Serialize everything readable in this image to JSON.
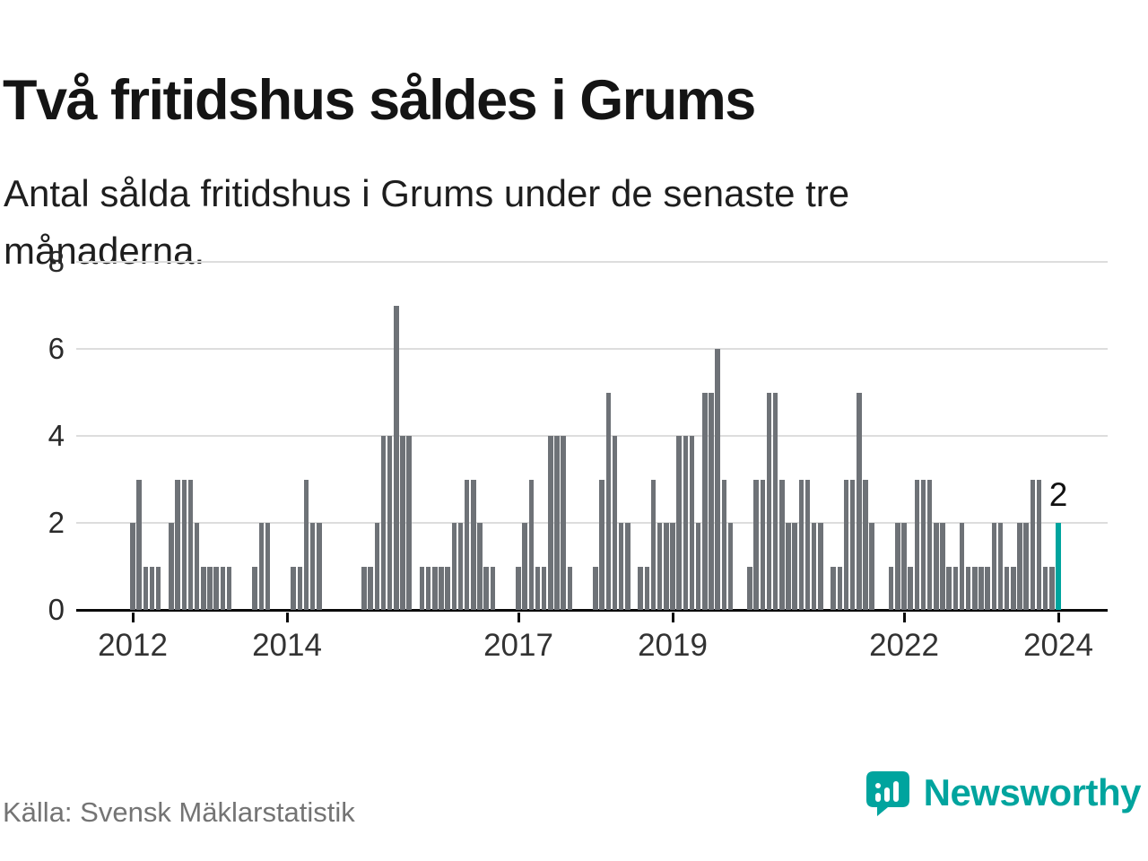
{
  "title": "Två fritidshus såldes i Grums",
  "subtitle": "Antal sålda fritidshus i Grums under de senaste tre månaderna.",
  "source": "Källa: Svensk Mäklarstatistik",
  "brand": {
    "name": "Newsworthy"
  },
  "colors": {
    "bar": "#6e7277",
    "highlight": "#00a49e",
    "grid": "#dddddd",
    "axis": "#0a0a0a",
    "brand": "#00a49e"
  },
  "chart_data": {
    "type": "bar",
    "title": "Antal sålda fritidshus i Grums under de senaste tre månaderna",
    "xlabel": "",
    "ylabel": "",
    "ylim": [
      0,
      8
    ],
    "yticks": [
      0,
      2,
      4,
      6,
      8
    ],
    "grid": true,
    "x_unit": "month",
    "x_tick_labels": [
      "2012",
      "2014",
      "2017",
      "2019",
      "2022",
      "2024"
    ],
    "x_tick_month_index": [
      0,
      24,
      60,
      84,
      120,
      144
    ],
    "highlight_last": true,
    "last_label": "2",
    "values": [
      2,
      3,
      1,
      1,
      1,
      0,
      2,
      3,
      3,
      3,
      2,
      1,
      1,
      1,
      1,
      1,
      0,
      0,
      0,
      1,
      2,
      2,
      0,
      0,
      0,
      1,
      1,
      3,
      2,
      2,
      0,
      0,
      0,
      0,
      0,
      0,
      1,
      1,
      2,
      4,
      4,
      7,
      4,
      4,
      0,
      1,
      1,
      1,
      1,
      1,
      2,
      2,
      3,
      3,
      2,
      1,
      1,
      0,
      0,
      0,
      1,
      2,
      3,
      1,
      1,
      4,
      4,
      4,
      1,
      0,
      0,
      0,
      1,
      3,
      5,
      4,
      2,
      2,
      0,
      1,
      1,
      3,
      2,
      2,
      2,
      4,
      4,
      4,
      2,
      5,
      5,
      6,
      3,
      2,
      0,
      0,
      1,
      3,
      3,
      5,
      5,
      3,
      2,
      2,
      3,
      3,
      2,
      2,
      0,
      1,
      1,
      3,
      3,
      5,
      3,
      2,
      0,
      0,
      1,
      2,
      2,
      1,
      3,
      3,
      3,
      2,
      2,
      1,
      1,
      2,
      1,
      1,
      1,
      1,
      2,
      2,
      1,
      1,
      2,
      2,
      3,
      3,
      1,
      1,
      2
    ]
  }
}
